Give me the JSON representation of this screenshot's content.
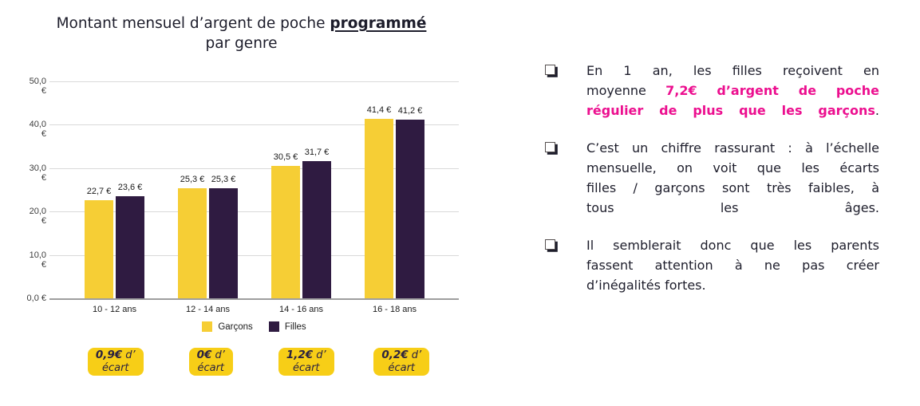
{
  "title": {
    "line1_prefix": "Montant mensuel d’argent de poche ",
    "line1_highlight": "programmé",
    "line2": "par genre"
  },
  "chart_data": {
    "type": "bar",
    "title": "Montant mensuel d’argent de poche programmé par genre",
    "categories": [
      "10 - 12 ans",
      "12 - 14 ans",
      "14 - 16 ans",
      "16 - 18 ans"
    ],
    "series": [
      {
        "name": "Garçons",
        "color": "#F6CE35",
        "values": [
          22.7,
          25.3,
          30.5,
          41.4
        ],
        "labels": [
          "22,7 €",
          "25,3 €",
          "30,5 €",
          "41,4 €"
        ]
      },
      {
        "name": "Filles",
        "color": "#2F1B41",
        "values": [
          23.6,
          25.3,
          31.7,
          41.2
        ],
        "labels": [
          "23,6 €",
          "25,3 €",
          "31,7 €",
          "41,2 €"
        ]
      }
    ],
    "y_ticks": [
      {
        "value": 50,
        "label": "50,0 €"
      },
      {
        "value": 40,
        "label": "40,0 €"
      },
      {
        "value": 30,
        "label": "30,0 €"
      },
      {
        "value": 20,
        "label": "20,0 €"
      },
      {
        "value": 10,
        "label": "10,0 €"
      },
      {
        "value": 0,
        "label": "0,0 €"
      }
    ],
    "ylim": [
      0,
      50
    ],
    "grid": true,
    "legend_position": "bottom"
  },
  "badges": [
    {
      "bold": "0,9€",
      "rest": "d’",
      "line2": "écart"
    },
    {
      "bold": "0€",
      "rest": "d’",
      "line2": "écart"
    },
    {
      "bold": "1,2€",
      "rest": "d’",
      "line2": "écart"
    },
    {
      "bold": "0,2€",
      "rest": "d’",
      "line2": "écart"
    }
  ],
  "bullets": [
    {
      "lines": [
        {
          "justify": true,
          "segments": [
            {
              "t": "En 1 an, les filles reçoivent en"
            }
          ]
        },
        {
          "justify": true,
          "segments": [
            {
              "t": "moyenne "
            },
            {
              "t": "7,2€ d’argent de poche",
              "pink": true
            }
          ]
        },
        {
          "justify": true,
          "segments": [
            {
              "t": "régulier de plus que les garçons",
              "pink": true
            },
            {
              "t": "."
            }
          ]
        }
      ]
    },
    {
      "lines": [
        {
          "justify": true,
          "segments": [
            {
              "t": "C’est un chiffre rassurant : à l’échelle"
            }
          ]
        },
        {
          "justify": true,
          "segments": [
            {
              "t": "mensuelle, on voit que les écarts"
            }
          ]
        },
        {
          "justify": true,
          "segments": [
            {
              "t": "filles / garçons sont très faibles, à"
            }
          ]
        },
        {
          "justify": true,
          "segments": [
            {
              "t": "tous les âges."
            }
          ]
        }
      ]
    },
    {
      "lines": [
        {
          "justify": true,
          "segments": [
            {
              "t": "Il semblerait donc que les parents"
            }
          ]
        },
        {
          "justify": true,
          "segments": [
            {
              "t": "fassent attention à ne pas créer"
            }
          ]
        },
        {
          "justify": false,
          "segments": [
            {
              "t": "d’inégalités fortes."
            }
          ]
        }
      ]
    }
  ],
  "colors": {
    "bar_yellow": "#F6CE35",
    "bar_purple": "#2F1B41",
    "badge_yellow": "#F7CE17",
    "accent_pink": "#EC0F8F",
    "text_dark": "#1D1D2B",
    "gridline": "#D9D9D9",
    "axis_line": "#9E9E9E"
  }
}
